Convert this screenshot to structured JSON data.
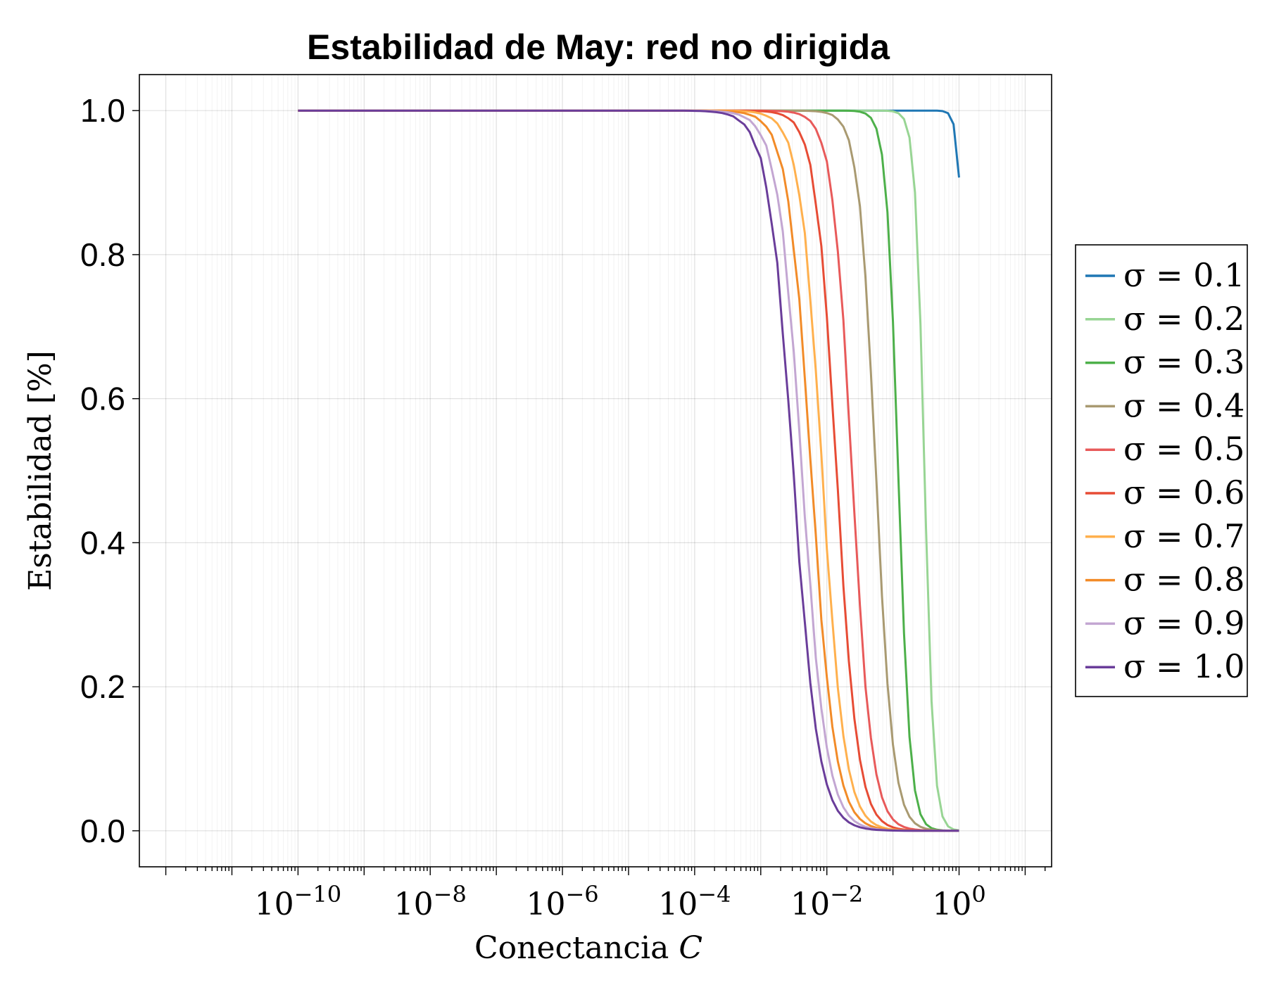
{
  "chart_data": {
    "type": "line",
    "title": "Estabilidad de May: red no dirigida",
    "xlabel_text": "Conectancia ",
    "xlabel_var": "C",
    "ylabel": "Estabilidad [%]",
    "xscale": "log",
    "xlim_exponent": [
      -12.4,
      1.4
    ],
    "ylim": [
      -0.05,
      1.05
    ],
    "x_ticks": [
      {
        "base": "10",
        "exp": "−10",
        "e": -10
      },
      {
        "base": "10",
        "exp": "−8",
        "e": -8
      },
      {
        "base": "10",
        "exp": "−6",
        "e": -6
      },
      {
        "base": "10",
        "exp": "−4",
        "e": -4
      },
      {
        "base": "10",
        "exp": "−2",
        "e": -2
      },
      {
        "base": "10",
        "exp": "0",
        "e": 0
      }
    ],
    "y_ticks": [
      {
        "label": "0.0",
        "v": 0.0
      },
      {
        "label": "0.2",
        "v": 0.2
      },
      {
        "label": "0.4",
        "v": 0.4
      },
      {
        "label": "0.6",
        "v": 0.6
      },
      {
        "label": "0.8",
        "v": 0.8
      },
      {
        "label": "1.0",
        "v": 1.0
      }
    ],
    "grid": true,
    "legend_position": "right",
    "series": [
      {
        "name": "σ = 0.1",
        "color": "#1f77b4",
        "C50": 1.3,
        "width": 0.05,
        "noise": 0.0
      },
      {
        "name": "σ = 0.2",
        "color": "#98d594",
        "C50": 0.3,
        "width": 0.07,
        "noise": 0.0
      },
      {
        "name": "σ = 0.3",
        "color": "#4db04a",
        "C50": 0.12,
        "width": 0.09,
        "noise": 0.0
      },
      {
        "name": "σ = 0.4",
        "color": "#a99a71",
        "C50": 0.055,
        "width": 0.13,
        "noise": 0.004
      },
      {
        "name": "σ = 0.5",
        "color": "#e85a5a",
        "C50": 0.024,
        "width": 0.15,
        "noise": 0.005
      },
      {
        "name": "σ = 0.6",
        "color": "#e74c35",
        "C50": 0.014,
        "width": 0.16,
        "noise": 0.006
      },
      {
        "name": "σ = 0.7",
        "color": "#ffb04d",
        "C50": 0.0085,
        "width": 0.17,
        "noise": 0.006
      },
      {
        "name": "σ = 0.8",
        "color": "#f28b28",
        "C50": 0.0058,
        "width": 0.18,
        "noise": 0.007
      },
      {
        "name": "σ = 0.9",
        "color": "#c3a6d2",
        "C50": 0.0042,
        "width": 0.185,
        "noise": 0.007
      },
      {
        "name": "σ = 1.0",
        "color": "#6a3d9a",
        "C50": 0.0031,
        "width": 0.19,
        "noise": 0.008
      }
    ]
  }
}
